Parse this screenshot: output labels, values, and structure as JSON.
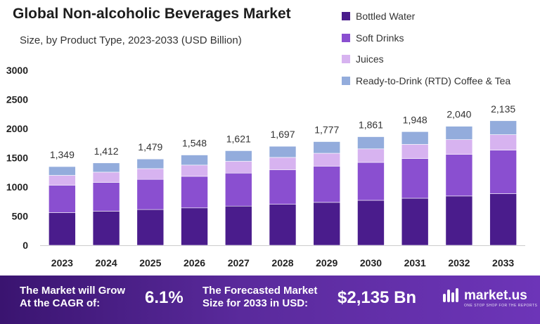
{
  "header": {
    "title": "Global Non-alcoholic Beverages Market",
    "subtitle": "Size, by Product Type, 2023-2033 (USD Billion)"
  },
  "colors": {
    "bottled_water": "#4a1c8c",
    "soft_drinks": "#8a4fd0",
    "juices": "#d7b3f0",
    "rtd": "#93acdc",
    "footer_bg": "#4b1f88"
  },
  "chart_data": {
    "type": "bar",
    "stacked": true,
    "categories": [
      "2023",
      "2024",
      "2025",
      "2026",
      "2027",
      "2028",
      "2029",
      "2030",
      "2031",
      "2032",
      "2033"
    ],
    "totals": [
      "1,349",
      "1,412",
      "1,479",
      "1,548",
      "1,621",
      "1,697",
      "1,777",
      "1,861",
      "1,948",
      "2,040",
      "2,135"
    ],
    "series": [
      {
        "name": "Bottled Water",
        "values": [
          560,
          585,
          613,
          641,
          672,
          703,
          736,
          771,
          807,
          845,
          885
        ]
      },
      {
        "name": "Soft Drinks",
        "values": [
          471,
          493,
          517,
          541,
          566,
          593,
          621,
          650,
          681,
          713,
          746
        ]
      },
      {
        "name": "Juices",
        "values": [
          168,
          176,
          184,
          193,
          202,
          211,
          221,
          232,
          242,
          254,
          266
        ]
      },
      {
        "name": "Ready-to-Drink (RTD) Coffee & Tea",
        "values": [
          150,
          158,
          165,
          173,
          181,
          190,
          199,
          208,
          218,
          228,
          238
        ]
      }
    ],
    "yticks": [
      "0",
      "500",
      "1000",
      "1500",
      "2000",
      "2500",
      "3000"
    ],
    "ylim": [
      0,
      3000
    ],
    "grid": false,
    "legend": "top-right"
  },
  "footer": {
    "cagr_label_line1": "The Market will Grow",
    "cagr_label_line2": "At the CAGR of:",
    "cagr_value": "6.1%",
    "forecast_label_line1": "The Forecasted Market",
    "forecast_label_line2": "Size for 2033 in USD:",
    "forecast_value": "$2,135 Bn",
    "brand": "market.us",
    "brand_tagline": "ONE STOP SHOP FOR THE REPORTS"
  }
}
